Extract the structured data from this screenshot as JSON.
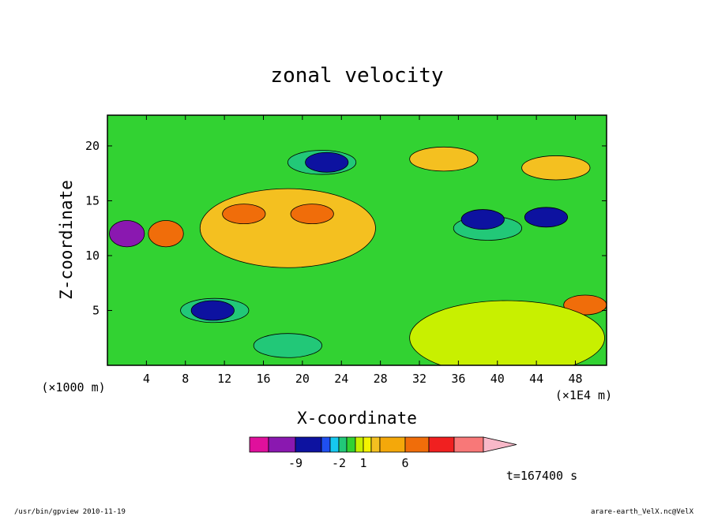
{
  "chart_data": {
    "type": "contour",
    "title": "zonal velocity",
    "xlabel": "X-coordinate",
    "ylabel": "Z-coordinate",
    "x_unit": "(×1E4 m)",
    "y_unit": "(×1000 m)",
    "xlim": [
      0,
      51.2
    ],
    "ylim": [
      0,
      22.8
    ],
    "x_ticks": [
      4,
      8,
      12,
      16,
      20,
      24,
      28,
      32,
      36,
      40,
      44,
      48
    ],
    "y_ticks": [
      5,
      10,
      15,
      20
    ],
    "colorbar": {
      "levels": [
        -12,
        -9,
        -6,
        -3,
        -2,
        -1,
        0,
        1,
        2,
        3,
        6,
        9,
        12,
        15
      ],
      "colors": [
        "#e0109c",
        "#8a18b0",
        "#0d12a0",
        "#1f4ff0",
        "#16c8f0",
        "#22c878",
        "#32d232",
        "#c8f000",
        "#f4f400",
        "#f4c020",
        "#f4a80a",
        "#f06d0a",
        "#f02020",
        "#f87878",
        "#f8b8c8"
      ],
      "tick_labels": [
        {
          "label": "-9",
          "value": -9
        },
        {
          "label": "-2",
          "value": -2
        },
        {
          "label": "1",
          "value": 1
        },
        {
          "label": "6",
          "value": 6
        }
      ],
      "extend": "max"
    },
    "field_features": [
      {
        "kind": "jet",
        "x": 2.0,
        "z": 12.0,
        "value": -10
      },
      {
        "kind": "jet",
        "x": 6.0,
        "z": 12.0,
        "value": 6
      },
      {
        "kind": "plume",
        "x": 18.5,
        "z": 12.5,
        "value": 2.5
      },
      {
        "kind": "core",
        "x": 14.0,
        "z": 13.8,
        "value": 6
      },
      {
        "kind": "core",
        "x": 21.0,
        "z": 13.8,
        "value": 6
      },
      {
        "kind": "cell",
        "x": 39.0,
        "z": 12.5,
        "value": -2
      },
      {
        "kind": "core",
        "x": 38.5,
        "z": 13.3,
        "value": -9
      },
      {
        "kind": "core",
        "x": 45.0,
        "z": 13.5,
        "value": -9
      },
      {
        "kind": "cell",
        "x": 34.5,
        "z": 18.8,
        "value": 2.5
      },
      {
        "kind": "cell",
        "x": 22.0,
        "z": 18.5,
        "value": -2
      },
      {
        "kind": "core",
        "x": 22.5,
        "z": 18.5,
        "value": -9
      },
      {
        "kind": "cell",
        "x": 18.5,
        "z": 1.8,
        "value": -2
      },
      {
        "kind": "cell",
        "x": 11.0,
        "z": 5.0,
        "value": -2
      },
      {
        "kind": "core",
        "x": 10.8,
        "z": 5.0,
        "value": -9
      },
      {
        "kind": "core",
        "x": 49.0,
        "z": 5.5,
        "value": 6
      },
      {
        "kind": "cell",
        "x": 46.0,
        "z": 18.0,
        "value": 2.5
      },
      {
        "kind": "region",
        "x": 41.0,
        "z": 2.5,
        "value": 0.5
      }
    ]
  },
  "footer": {
    "time_label": "t=167400 s",
    "left": "/usr/bin/gpview  2010-11-19",
    "right": "arare-earth_VelX.nc@VelX"
  }
}
